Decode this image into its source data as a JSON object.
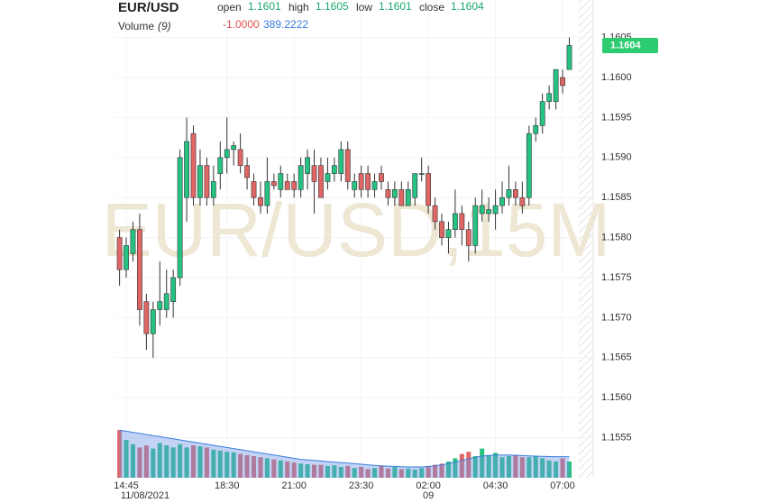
{
  "chart_data": {
    "type": "candlestick",
    "symbol": "EUR/USD",
    "watermark": "EUR/USD,15M",
    "ohlc_labels": {
      "open": "open",
      "high": "high",
      "low": "low",
      "close": "close"
    },
    "ohlc_values": {
      "open": 1.1601,
      "high": 1.1605,
      "low": 1.1601,
      "close": 1.1604
    },
    "volume_label": "Volume",
    "volume_period": "(9)",
    "volume_change": "-1.0000",
    "volume_ma_last": "389.2222",
    "last_price": 1.1604,
    "up_color": "#26c281",
    "down_color": "#e06666",
    "volume_ma_color": "#3b7ddd",
    "grid": true,
    "categories": [
      null,
      "14:45",
      null,
      null,
      null,
      null,
      null,
      null,
      null,
      null,
      null,
      null,
      null,
      null,
      null,
      null,
      "18:30",
      null,
      null,
      null,
      null,
      null,
      null,
      null,
      null,
      null,
      "21:00",
      null,
      null,
      null,
      null,
      null,
      null,
      null,
      null,
      null,
      "23:30",
      null,
      null,
      null,
      null,
      null,
      null,
      null,
      null,
      null,
      "02:00",
      null,
      null,
      null,
      null,
      null,
      null,
      null,
      null,
      null,
      "04:30",
      null,
      null,
      null,
      null,
      null,
      null,
      null,
      null,
      null,
      "07:00",
      null
    ],
    "category_dates": [
      null,
      "11/08/2021",
      null,
      null,
      null,
      null,
      null,
      null,
      null,
      null,
      null,
      null,
      null,
      null,
      null,
      null,
      null,
      null,
      null,
      null,
      null,
      null,
      null,
      null,
      null,
      null,
      null,
      null,
      null,
      null,
      null,
      null,
      null,
      null,
      null,
      null,
      null,
      null,
      null,
      null,
      null,
      null,
      null,
      null,
      null,
      null,
      "09",
      null,
      null,
      null,
      null,
      null,
      null,
      null,
      null,
      null,
      null,
      null,
      null,
      null,
      null,
      null,
      null,
      null,
      null,
      null,
      null,
      null
    ],
    "open": [
      1.158,
      1.1576,
      1.1578,
      1.1581,
      1.1572,
      1.1568,
      1.1571,
      1.1571,
      1.1572,
      1.1575,
      1.1585,
      1.1593,
      1.1585,
      1.1589,
      1.1585,
      1.1588,
      1.159,
      1.1591,
      1.1591,
      1.1589,
      1.1587,
      1.1585,
      1.1584,
      1.1587,
      1.1586,
      1.1587,
      1.1587,
      1.1586,
      1.1588,
      1.1589,
      1.1589,
      1.1587,
      1.1588,
      1.1588,
      1.1591,
      1.1586,
      1.1588,
      1.1588,
      1.1586,
      1.1588,
      1.1586,
      1.1585,
      1.1586,
      1.1584,
      1.1585,
      1.1588,
      1.1588,
      1.1584,
      1.1582,
      1.158,
      1.1581,
      1.1583,
      1.1581,
      1.1579,
      1.1583,
      1.1583,
      1.1583,
      1.1584,
      1.1585,
      1.1586,
      1.1585,
      1.1585,
      1.1593,
      1.1594,
      1.1597,
      1.1597,
      1.16,
      1.1601
    ],
    "high": [
      1.1581,
      1.158,
      1.1582,
      1.1583,
      1.1573,
      1.1572,
      1.1577,
      1.1576,
      1.1576,
      1.1591,
      1.1595,
      1.1594,
      1.1591,
      1.159,
      1.1589,
      1.1592,
      1.1595,
      1.1592,
      1.1593,
      1.159,
      1.1588,
      1.1587,
      1.159,
      1.1588,
      1.1589,
      1.1588,
      1.1588,
      1.159,
      1.1591,
      1.1591,
      1.159,
      1.159,
      1.159,
      1.1592,
      1.1592,
      1.1588,
      1.1589,
      1.1589,
      1.1588,
      1.1589,
      1.1587,
      1.1587,
      1.1587,
      1.1587,
      1.1588,
      1.159,
      1.1589,
      1.1585,
      1.1583,
      1.1582,
      1.1586,
      1.1584,
      1.1582,
      1.1585,
      1.1586,
      1.1585,
      1.1586,
      1.1587,
      1.1589,
      1.1587,
      1.1587,
      1.1594,
      1.1595,
      1.1598,
      1.1599,
      1.1601,
      1.1601,
      1.1605
    ],
    "low": [
      1.1574,
      1.1575,
      1.1577,
      1.1569,
      1.1566,
      1.1565,
      1.1569,
      1.157,
      1.157,
      1.1574,
      1.1582,
      1.1584,
      1.1584,
      1.1584,
      1.1584,
      1.1586,
      1.1588,
      1.1589,
      1.1588,
      1.1586,
      1.1584,
      1.1583,
      1.1583,
      1.1586,
      1.1585,
      1.1586,
      1.1585,
      1.1585,
      1.1586,
      1.1583,
      1.1585,
      1.1586,
      1.1587,
      1.1587,
      1.1586,
      1.1585,
      1.1585,
      1.1585,
      1.1585,
      1.1586,
      1.1584,
      1.1584,
      1.1584,
      1.1584,
      1.1584,
      1.1587,
      1.1583,
      1.1581,
      1.1579,
      1.1578,
      1.158,
      1.1579,
      1.1577,
      1.1578,
      1.1582,
      1.1582,
      1.1581,
      1.1583,
      1.1584,
      1.1584,
      1.1583,
      1.1584,
      1.1592,
      1.1593,
      1.1596,
      1.1596,
      1.1598,
      1.1601
    ],
    "close": [
      1.1576,
      1.1579,
      1.1581,
      1.1571,
      1.1568,
      1.1571,
      1.1572,
      1.1573,
      1.1575,
      1.159,
      1.1592,
      1.1585,
      1.1589,
      1.1585,
      1.1587,
      1.159,
      1.1591,
      1.15915,
      1.1589,
      1.15875,
      1.1585,
      1.1584,
      1.1587,
      1.15865,
      1.1588,
      1.1586,
      1.1586,
      1.1589,
      1.159,
      1.1587,
      1.1585,
      1.1588,
      1.1589,
      1.1591,
      1.1587,
      1.1587,
      1.1586,
      1.1586,
      1.1587,
      1.1587,
      1.1585,
      1.1586,
      1.1584,
      1.1586,
      1.1588,
      1.1588,
      1.1584,
      1.1582,
      1.158,
      1.1581,
      1.1583,
      1.1581,
      1.1579,
      1.1584,
      1.1584,
      1.15835,
      1.1584,
      1.1585,
      1.1586,
      1.1585,
      1.1584,
      1.1593,
      1.1594,
      1.1597,
      1.1598,
      1.1601,
      1.1599,
      1.1604
    ],
    "volume": [
      880,
      700,
      620,
      560,
      600,
      540,
      640,
      600,
      560,
      620,
      560,
      600,
      580,
      560,
      520,
      500,
      480,
      470,
      440,
      420,
      400,
      380,
      360,
      340,
      320,
      300,
      280,
      260,
      250,
      240,
      240,
      220,
      230,
      200,
      220,
      180,
      200,
      160,
      180,
      220,
      170,
      200,
      160,
      170,
      150,
      180,
      200,
      240,
      260,
      300,
      360,
      440,
      480,
      400,
      540,
      420,
      460,
      380,
      400,
      420,
      380,
      380,
      400,
      360,
      320,
      300,
      360,
      300
    ],
    "volume_ma": [
      880,
      860,
      840,
      820,
      800,
      780,
      760,
      740,
      720,
      700,
      680,
      660,
      640,
      620,
      600,
      580,
      560,
      540,
      520,
      500,
      480,
      460,
      440,
      420,
      400,
      380,
      360,
      340,
      330,
      320,
      310,
      300,
      290,
      280,
      270,
      260,
      250,
      240,
      230,
      220,
      215,
      210,
      205,
      200,
      200,
      200,
      210,
      220,
      240,
      260,
      290,
      320,
      350,
      380,
      400,
      410,
      420,
      420,
      420,
      415,
      410,
      405,
      400,
      395,
      392,
      390,
      390,
      389.2222
    ],
    "ylim": [
      1.155,
      1.161
    ],
    "yticks": [
      1.1555,
      {
        "value": 1.156,
        "label": "1.1560"
      },
      1.1565,
      {
        "value": 1.157,
        "label": "1.1570"
      },
      1.1575,
      {
        "value": 1.158,
        "label": "1.1580"
      },
      1.1585,
      {
        "value": 1.159,
        "label": "1.1590"
      },
      1.1595,
      {
        "value": 1.16,
        "label": "1.1600"
      },
      1.1605
    ],
    "y2lim": [
      0,
      1000
    ]
  }
}
